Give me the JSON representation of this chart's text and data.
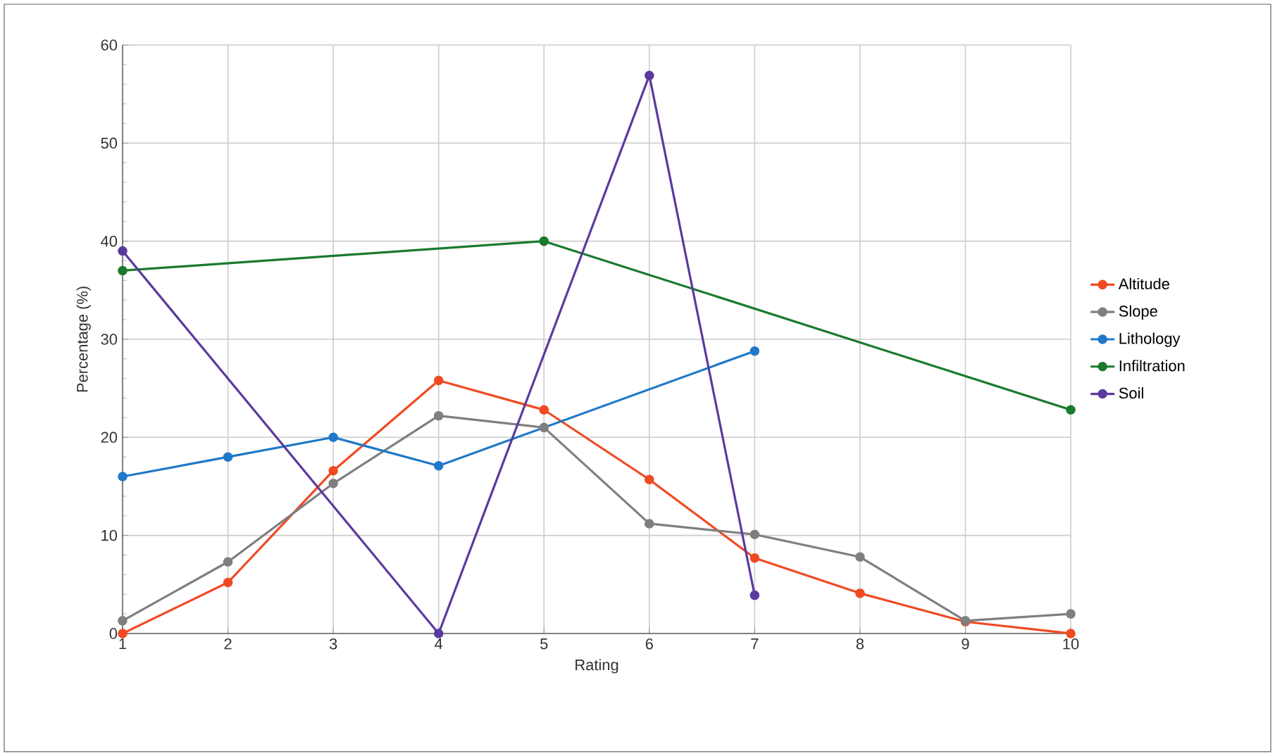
{
  "chart_data": {
    "type": "line",
    "xlabel": "Rating",
    "ylabel": "Percentage (%)",
    "xlim": [
      1,
      10
    ],
    "xticks": [
      1,
      2,
      3,
      4,
      5,
      6,
      7,
      8,
      9,
      10
    ],
    "ylim": [
      0,
      60
    ],
    "yticks": [
      0,
      10,
      20,
      30,
      40,
      50,
      60
    ],
    "grid": true,
    "legend": "right",
    "marker": "circle",
    "line_style": "solid",
    "series": [
      {
        "name": "Altitude",
        "color": "#f04a22",
        "x": [
          1,
          2,
          3,
          4,
          5,
          6,
          7,
          8,
          9,
          10
        ],
        "values": [
          0,
          5.2,
          16.6,
          25.8,
          22.8,
          15.7,
          7.7,
          4.1,
          1.2,
          0
        ]
      },
      {
        "name": "Slope",
        "color": "#7f7f7f",
        "x": [
          1,
          2,
          3,
          4,
          5,
          6,
          7,
          8,
          9,
          10
        ],
        "values": [
          1.3,
          7.3,
          15.3,
          22.2,
          21,
          11.2,
          10.1,
          7.8,
          1.3,
          2.0
        ]
      },
      {
        "name": "Lithology",
        "color": "#1f78c8",
        "x": [
          1,
          2,
          3,
          4,
          7
        ],
        "values": [
          16,
          18,
          20,
          17.1,
          28.8
        ]
      },
      {
        "name": "Infiltration",
        "color": "#1a7a2e",
        "x": [
          1,
          5,
          10
        ],
        "values": [
          37,
          40,
          22.8
        ]
      },
      {
        "name": "Soil",
        "color": "#5b3a9e",
        "x": [
          1,
          4,
          6,
          7
        ],
        "values": [
          39,
          0,
          56.9,
          3.9
        ]
      }
    ]
  }
}
